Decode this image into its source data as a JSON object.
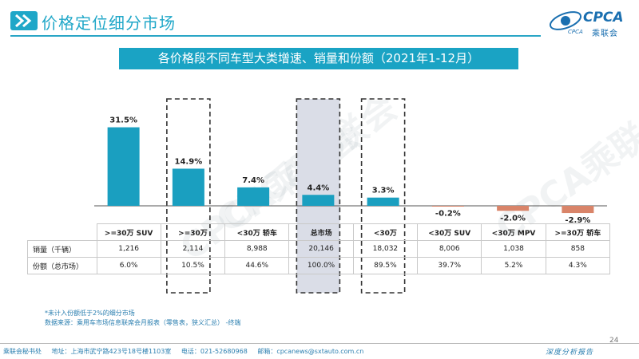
{
  "header": {
    "title": "价格定位细分市场"
  },
  "logo": {
    "brand": "CPCA",
    "name": "乘联会",
    "tag": "CPCA"
  },
  "watermark": "CPCA乘联会",
  "colors": {
    "accent": "#1fa7c8",
    "positive_bar": "#1a9fc0",
    "negative_bar": "#d98469",
    "highlight_fill": "#dadde7",
    "dash": "#333333"
  },
  "chart_data": {
    "type": "bar",
    "title": "各价格段不同车型大类增速、销量和份额（2021年1-12月）",
    "categories": [
      ">=30万 SUV",
      ">=30万",
      "<30万 轿车",
      "总市场",
      "<30万",
      "<30万 SUV",
      "<30万 MPV",
      ">=30万 轿车"
    ],
    "values": [
      31.5,
      14.9,
      7.4,
      4.4,
      3.3,
      -0.2,
      -2.0,
      -2.9
    ],
    "value_labels": [
      "31.5%",
      "14.9%",
      "7.4%",
      "4.4%",
      "3.3%",
      "-0.2%",
      "-2.0%",
      "-2.9%"
    ],
    "series": [
      {
        "name": "增速",
        "values": [
          31.5,
          14.9,
          7.4,
          4.4,
          3.3,
          -0.2,
          -2.0,
          -2.9
        ]
      }
    ],
    "highlighted": [
      ">=30万",
      "总市场",
      "<30万"
    ],
    "shaded": [
      "总市场"
    ],
    "ylim": [
      -3.5,
      32
    ],
    "xlabel": "",
    "ylabel": "",
    "grid": false,
    "table": {
      "rows": [
        {
          "label": "销量（千辆）",
          "values": [
            "1,216",
            "2,114",
            "8,988",
            "20,146",
            "18,032",
            "8,006",
            "1,038",
            "858"
          ]
        },
        {
          "label": "份额（总市场）",
          "values": [
            "6.0%",
            "10.5%",
            "44.6%",
            "100.0%",
            "89.5%",
            "39.7%",
            "5.2%",
            "4.3%"
          ]
        }
      ]
    }
  },
  "notes": {
    "line1": "*未计入份额低于2%的细分市场",
    "line2": "数据来源：乘用车市场信息联席会月报表（零售表，狭义汇总）  -终端"
  },
  "footer": {
    "office": "乘联会秘书处",
    "address": "地址：上海市武宁路423号18号楼1103室",
    "phone": "电话：021-52680968",
    "email": "邮箱：cpcanews@sxtauto.com.cn",
    "report": "深度分析报告",
    "page": "24"
  }
}
